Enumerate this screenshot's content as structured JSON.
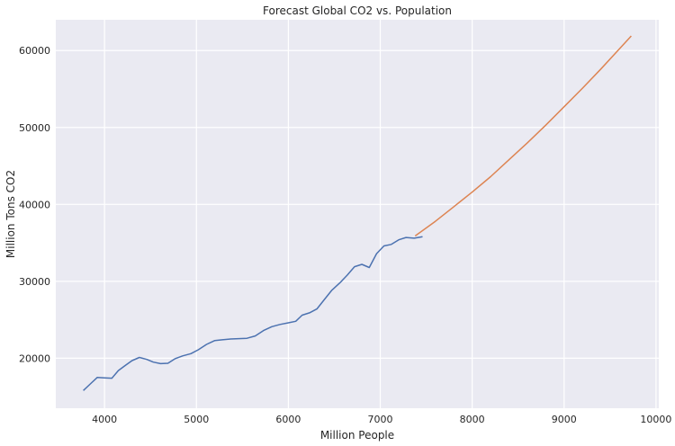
{
  "chart_data": {
    "type": "line",
    "title": "Forecast Global CO2 vs. Population",
    "xlabel": "Million People",
    "ylabel": "Million Tons CO2",
    "xlim": [
      3470,
      10030
    ],
    "ylim": [
      13500,
      64000
    ],
    "xticks": [
      4000,
      5000,
      6000,
      7000,
      8000,
      9000,
      10000
    ],
    "yticks": [
      20000,
      30000,
      40000,
      50000,
      60000
    ],
    "grid": true,
    "background_color": "#eaeaf2",
    "grid_color": "#ffffff",
    "series": [
      {
        "color": "#4c72b0",
        "x": [
          3770,
          3840,
          3920,
          4000,
          4080,
          4150,
          4230,
          4300,
          4380,
          4460,
          4530,
          4610,
          4690,
          4770,
          4850,
          4940,
          5020,
          5110,
          5200,
          5280,
          5370,
          5460,
          5550,
          5640,
          5730,
          5820,
          5910,
          6000,
          6080,
          6150,
          6230,
          6310,
          6390,
          6470,
          6560,
          6640,
          6720,
          6800,
          6880,
          6960,
          7040,
          7120,
          7200,
          7280,
          7370,
          7460
        ],
        "y": [
          15800,
          16600,
          17500,
          17450,
          17400,
          18400,
          19100,
          19700,
          20100,
          19850,
          19500,
          19300,
          19350,
          19950,
          20300,
          20600,
          21100,
          21800,
          22300,
          22400,
          22500,
          22550,
          22600,
          22900,
          23600,
          24100,
          24400,
          24600,
          24800,
          25600,
          25900,
          26400,
          27600,
          28800,
          29800,
          30800,
          31900,
          32200,
          31800,
          33600,
          34600,
          34800,
          35400,
          35700,
          35600,
          35800
        ]
      },
      {
        "color": "#dd8452",
        "x": [
          7380,
          7600,
          7800,
          8000,
          8200,
          8400,
          8600,
          8800,
          9000,
          9200,
          9400,
          9600,
          9730
        ],
        "y": [
          35900,
          37800,
          39700,
          41600,
          43600,
          45800,
          48000,
          50300,
          52700,
          55100,
          57600,
          60200,
          61900
        ]
      }
    ]
  }
}
